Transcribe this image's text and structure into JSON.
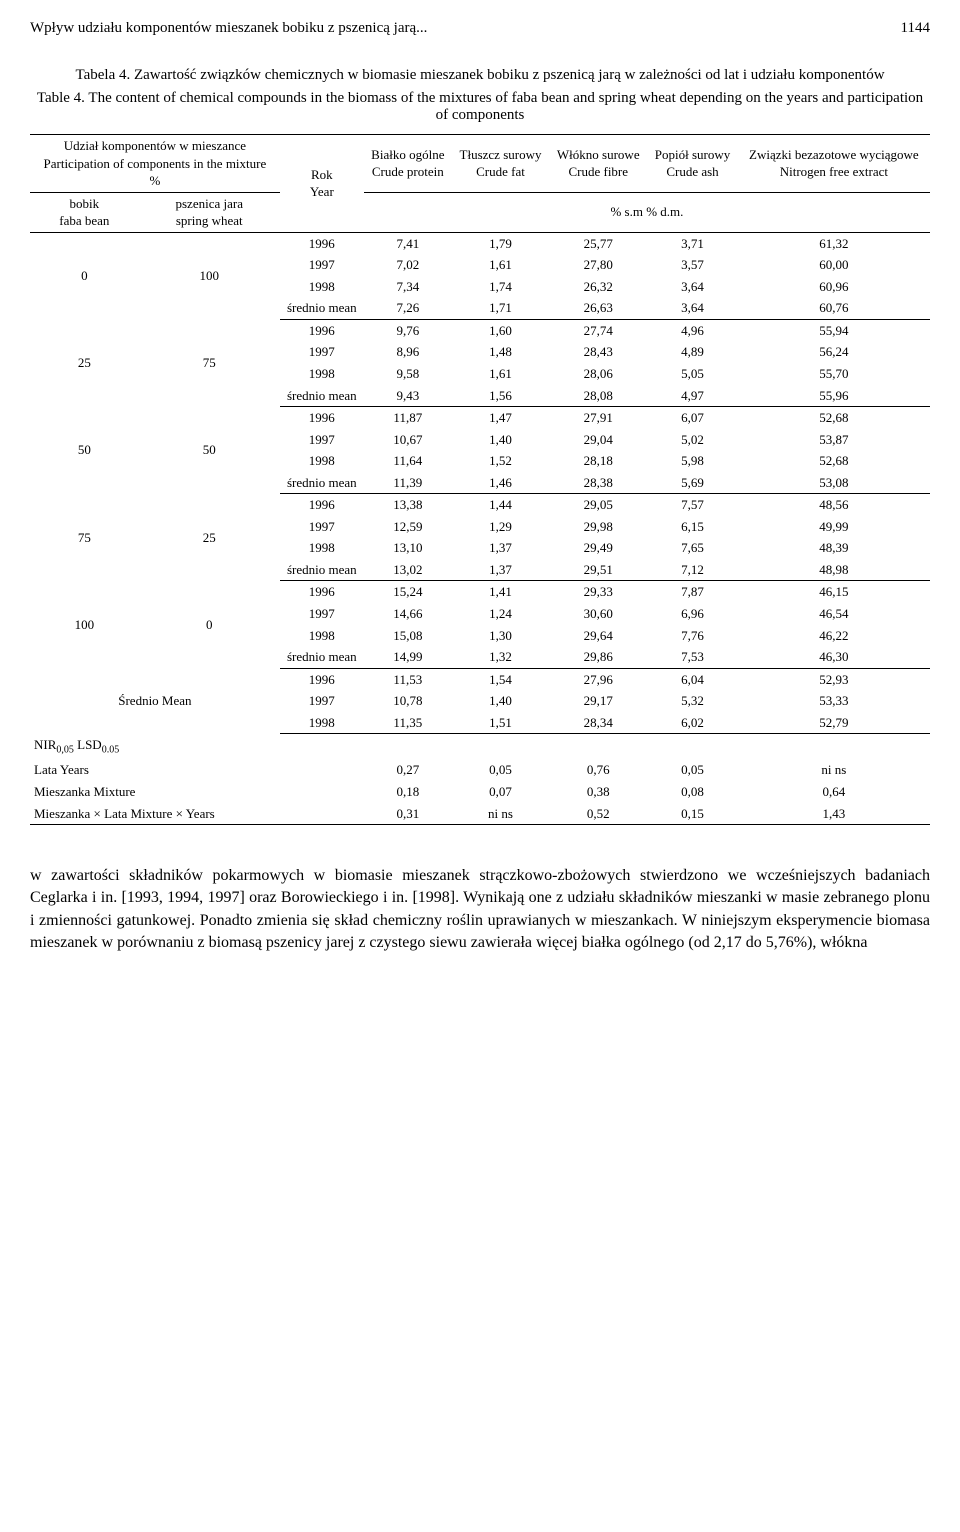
{
  "header": {
    "running_title": "Wpływ udziału komponentów mieszanek bobiku z pszenicą jarą...",
    "page_number": "1144"
  },
  "caption": {
    "table_label": "Tabela 4. Zawartość związków chemicznych w biomasie mieszanek bobiku z pszenicą jarą w zależności od lat i udziału komponentów",
    "table_label_en": "Table 4. The content of chemical compounds in the biomass of the mixtures of faba bean and spring wheat depending on the years and participation of components"
  },
  "table": {
    "head": {
      "col_participation_1": "Udział komponentów w mieszance",
      "col_participation_2": "Participation of components in the mixture",
      "col_participation_3": "%",
      "sub_bobik_1": "bobik",
      "sub_bobik_2": "faba bean",
      "sub_psz_1": "pszenica jara",
      "sub_psz_2": "spring wheat",
      "col_year_1": "Rok",
      "col_year_2": "Year",
      "col_protein_1": "Białko ogólne",
      "col_protein_2": "Crude protein",
      "col_fat_1": "Tłuszcz surowy",
      "col_fat_2": "Crude fat",
      "col_fibre_1": "Włókno surowe",
      "col_fibre_2": "Crude fibre",
      "col_ash_1": "Popiół surowy",
      "col_ash_2": "Crude ash",
      "col_nfe_1": "Związki bezazotowe wyciągowe",
      "col_nfe_2": "Nitrogen free extract",
      "units": "% s.m % d.m."
    },
    "groups": [
      {
        "b": "0",
        "p": "100",
        "rows": [
          {
            "y": "1996",
            "v": [
              "7,41",
              "1,79",
              "25,77",
              "3,71",
              "61,32"
            ]
          },
          {
            "y": "1997",
            "v": [
              "7,02",
              "1,61",
              "27,80",
              "3,57",
              "60,00"
            ]
          },
          {
            "y": "1998",
            "v": [
              "7,34",
              "1,74",
              "26,32",
              "3,64",
              "60,96"
            ]
          },
          {
            "y": "średnio mean",
            "v": [
              "7,26",
              "1,71",
              "26,63",
              "3,64",
              "60,76"
            ]
          }
        ]
      },
      {
        "b": "25",
        "p": "75",
        "rows": [
          {
            "y": "1996",
            "v": [
              "9,76",
              "1,60",
              "27,74",
              "4,96",
              "55,94"
            ]
          },
          {
            "y": "1997",
            "v": [
              "8,96",
              "1,48",
              "28,43",
              "4,89",
              "56,24"
            ]
          },
          {
            "y": "1998",
            "v": [
              "9,58",
              "1,61",
              "28,06",
              "5,05",
              "55,70"
            ]
          },
          {
            "y": "średnio mean",
            "v": [
              "9,43",
              "1,56",
              "28,08",
              "4,97",
              "55,96"
            ]
          }
        ]
      },
      {
        "b": "50",
        "p": "50",
        "rows": [
          {
            "y": "1996",
            "v": [
              "11,87",
              "1,47",
              "27,91",
              "6,07",
              "52,68"
            ]
          },
          {
            "y": "1997",
            "v": [
              "10,67",
              "1,40",
              "29,04",
              "5,02",
              "53,87"
            ]
          },
          {
            "y": "1998",
            "v": [
              "11,64",
              "1,52",
              "28,18",
              "5,98",
              "52,68"
            ]
          },
          {
            "y": "średnio mean",
            "v": [
              "11,39",
              "1,46",
              "28,38",
              "5,69",
              "53,08"
            ]
          }
        ]
      },
      {
        "b": "75",
        "p": "25",
        "rows": [
          {
            "y": "1996",
            "v": [
              "13,38",
              "1,44",
              "29,05",
              "7,57",
              "48,56"
            ]
          },
          {
            "y": "1997",
            "v": [
              "12,59",
              "1,29",
              "29,98",
              "6,15",
              "49,99"
            ]
          },
          {
            "y": "1998",
            "v": [
              "13,10",
              "1,37",
              "29,49",
              "7,65",
              "48,39"
            ]
          },
          {
            "y": "średnio mean",
            "v": [
              "13,02",
              "1,37",
              "29,51",
              "7,12",
              "48,98"
            ]
          }
        ]
      },
      {
        "b": "100",
        "p": "0",
        "rows": [
          {
            "y": "1996",
            "v": [
              "15,24",
              "1,41",
              "29,33",
              "7,87",
              "46,15"
            ]
          },
          {
            "y": "1997",
            "v": [
              "14,66",
              "1,24",
              "30,60",
              "6,96",
              "46,54"
            ]
          },
          {
            "y": "1998",
            "v": [
              "15,08",
              "1,30",
              "29,64",
              "7,76",
              "46,22"
            ]
          },
          {
            "y": "średnio mean",
            "v": [
              "14,99",
              "1,32",
              "29,86",
              "7,53",
              "46,30"
            ]
          }
        ]
      }
    ],
    "mean_group": {
      "label": "Średnio Mean",
      "rows": [
        {
          "y": "1996",
          "v": [
            "11,53",
            "1,54",
            "27,96",
            "6,04",
            "52,93"
          ]
        },
        {
          "y": "1997",
          "v": [
            "10,78",
            "1,40",
            "29,17",
            "5,32",
            "53,33"
          ]
        },
        {
          "y": "1998",
          "v": [
            "11,35",
            "1,51",
            "28,34",
            "6,02",
            "52,79"
          ]
        }
      ]
    },
    "lsd": {
      "label_html": "NIR<span class='sub'>0,05</span> LSD<span class='sub'>0.05</span>",
      "rows": [
        {
          "label": "Lata Years",
          "v": [
            "0,27",
            "0,05",
            "0,76",
            "0,05",
            "ni ns"
          ]
        },
        {
          "label": "Mieszanka Mixture",
          "v": [
            "0,18",
            "0,07",
            "0,38",
            "0,08",
            "0,64"
          ]
        },
        {
          "label": "Mieszanka × Lata Mixture × Years",
          "v": [
            "0,31",
            "ni ns",
            "0,52",
            "0,15",
            "1,43"
          ]
        }
      ]
    }
  },
  "body_text": "w zawartości składników pokarmowych w biomasie mieszanek strączkowo-zbożowych stwierdzono we wcześniejszych badaniach Ceglarka i in. [1993, 1994, 1997] oraz Borowieckiego i in. [1998]. Wynikają one z udziału składników mieszanki w masie zebranego plonu i zmienności gatunkowej. Ponadto zmienia się skład chemiczny roślin uprawianych w mieszankach. W niniejszym eksperymencie biomasa mieszanek w porównaniu z biomasą pszenicy jarej z czystego siewu zawierała więcej białka ogólnego (od 2,17 do 5,76%), włókna"
}
